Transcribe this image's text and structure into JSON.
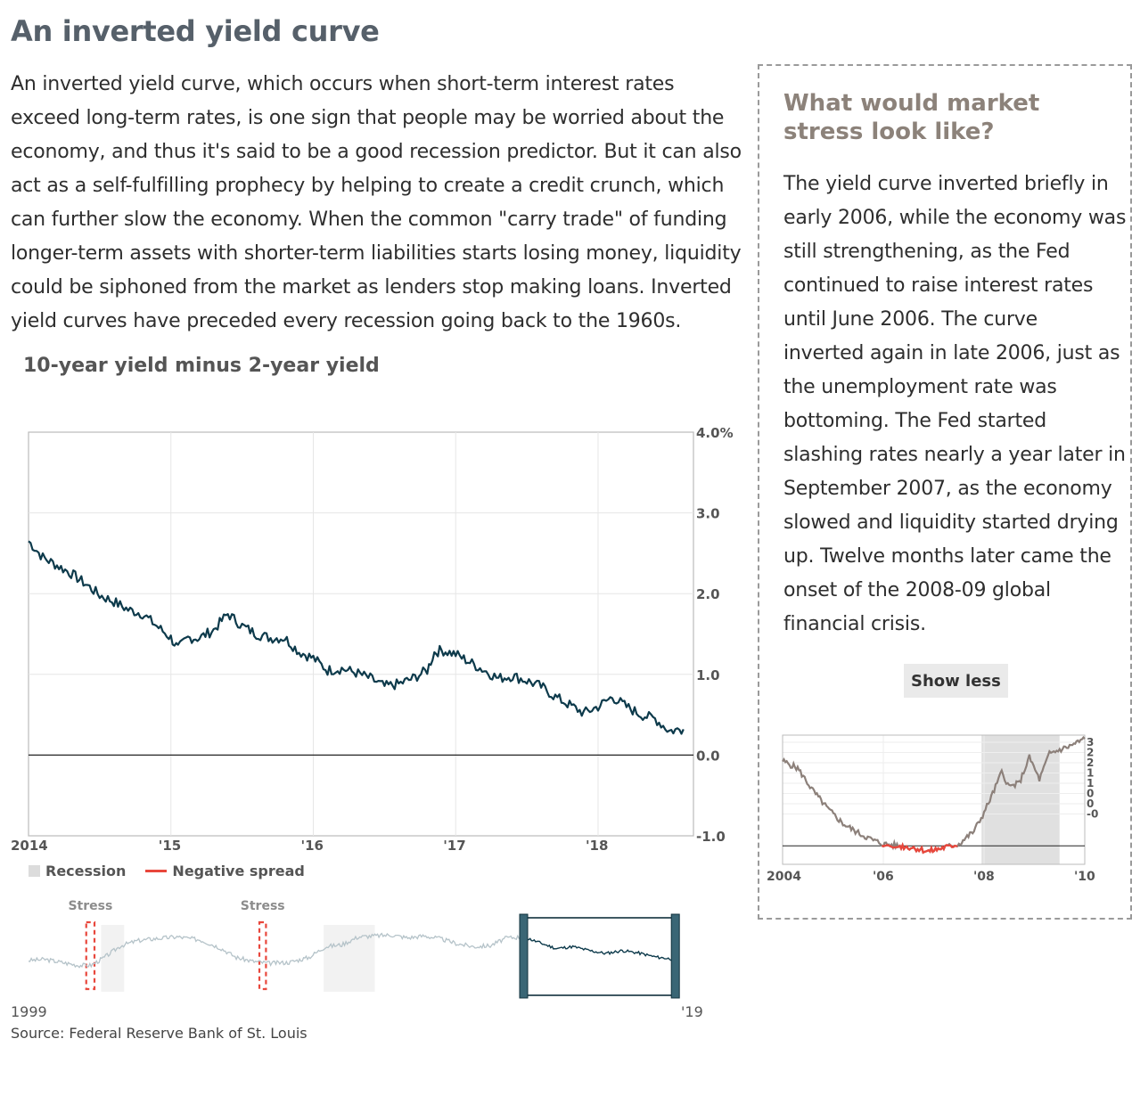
{
  "article": {
    "title": "An inverted yield curve",
    "intro": "An inverted yield curve, which occurs when short-term interest rates exceed long-term rates, is one sign that people may be worried about the economy, and thus it's said to be a good recession predictor. But it can also act as a self-fulfilling prophecy by helping to create a credit crunch, which can further slow the economy. When the common \"carry trade\" of funding longer-term assets with shorter-term liabilities starts losing money, liquidity could be siphoned from the market as lenders stop making loans. Inverted yield curves have preceded every recession going back to the 1960s.",
    "source": "Source: Federal Reserve Bank of St. Louis"
  },
  "legend": {
    "recession": "Recession",
    "negative": "Negative spread"
  },
  "colors": {
    "main_line": "#0d3a4b",
    "context_line": "#b5c3c9",
    "side_line": "#8c807a",
    "negative": "#e8473c",
    "recession": "#dcdcdc",
    "brush": "#3a6675"
  },
  "chart_data": [
    {
      "type": "line",
      "title": "10-year yield minus 2-year yield",
      "x_tick_labels": [
        "2014",
        "'15",
        "'16",
        "'17",
        "'18"
      ],
      "y_tick_labels": [
        "4.0%",
        "3.0",
        "2.0",
        "1.0",
        "0.0",
        "-1.0"
      ],
      "ylim": [
        -1.0,
        4.0
      ],
      "xlim": [
        2014.0,
        2018.67
      ],
      "grid": true,
      "axis_side": "right",
      "series": [
        {
          "x": [
            2014.0,
            2014.1,
            2014.2,
            2014.3,
            2014.4,
            2014.5,
            2014.6,
            2014.7,
            2014.8,
            2014.9,
            2015.0,
            2015.05,
            2015.12,
            2015.2,
            2015.3,
            2015.4,
            2015.5,
            2015.6,
            2015.7,
            2015.8,
            2015.9,
            2016.0,
            2016.1,
            2016.2,
            2016.3,
            2016.4,
            2016.5,
            2016.6,
            2016.7,
            2016.8,
            2016.85,
            2016.9,
            2017.0,
            2017.1,
            2017.2,
            2017.3,
            2017.4,
            2017.5,
            2017.6,
            2017.7,
            2017.8,
            2017.9,
            2018.0,
            2018.1,
            2018.2,
            2018.3,
            2018.4,
            2018.5,
            2018.6
          ],
          "values": [
            2.65,
            2.45,
            2.35,
            2.25,
            2.12,
            1.98,
            1.9,
            1.8,
            1.75,
            1.6,
            1.45,
            1.32,
            1.45,
            1.45,
            1.55,
            1.75,
            1.6,
            1.5,
            1.45,
            1.45,
            1.28,
            1.2,
            1.05,
            1.07,
            1.02,
            0.95,
            0.85,
            0.88,
            0.95,
            1.05,
            1.27,
            1.3,
            1.25,
            1.15,
            1.05,
            0.95,
            0.98,
            0.92,
            0.85,
            0.72,
            0.62,
            0.52,
            0.6,
            0.72,
            0.6,
            0.5,
            0.45,
            0.3,
            0.32
          ]
        }
      ]
    },
    {
      "type": "line",
      "x_tick_labels": [
        "1999",
        "'19"
      ],
      "annotations": [
        "Stress",
        "Stress"
      ],
      "stress_ranges": [
        [
          2000.75,
          2001.0
        ],
        [
          2006.0,
          2006.2
        ]
      ],
      "recession_ranges": [
        [
          2001.2,
          2001.9
        ],
        [
          2007.95,
          2009.5
        ]
      ],
      "selection": [
        2014.0,
        2018.6
      ],
      "xlim": [
        1999.0,
        2019.0
      ],
      "ylim": [
        -1.0,
        3.0
      ],
      "series": [
        {
          "x": [
            1999.0,
            1999.5,
            2000.0,
            2000.5,
            2000.9,
            2001.3,
            2001.8,
            2002.3,
            2002.8,
            2003.5,
            2004.2,
            2004.8,
            2005.3,
            2005.8,
            2006.3,
            2006.9,
            2007.5,
            2008.0,
            2008.5,
            2009.0,
            2009.5,
            2010.0,
            2010.5,
            2011.0,
            2011.5,
            2012.0,
            2012.5,
            2013.0,
            2013.5,
            2014.0
          ],
          "values": [
            0.2,
            0.3,
            0.0,
            -0.3,
            -0.3,
            0.5,
            1.7,
            2.2,
            2.4,
            2.6,
            2.3,
            1.5,
            0.5,
            0.1,
            -0.1,
            0.0,
            0.5,
            1.6,
            1.8,
            2.6,
            2.7,
            2.8,
            2.5,
            2.7,
            2.4,
            1.9,
            1.6,
            1.7,
            2.5,
            2.6
          ]
        },
        {
          "x": [
            2014.0,
            2014.5,
            2015.0,
            2015.5,
            2016.0,
            2016.5,
            2017.0,
            2017.5,
            2018.0,
            2018.6
          ],
          "values": [
            2.6,
            2.0,
            1.4,
            1.6,
            1.2,
            0.9,
            1.2,
            0.95,
            0.55,
            0.3
          ]
        }
      ]
    },
    {
      "type": "line",
      "title": "What would market stress look like?",
      "x_tick_labels": [
        "2004",
        "'06",
        "'08",
        "'10"
      ],
      "y_tick_labels": [
        "3",
        "2",
        "2",
        "1",
        "1",
        "0",
        "0",
        "-0"
      ],
      "recession_ranges": [
        [
          2007.95,
          2009.5
        ]
      ],
      "xlim": [
        2004.0,
        2010.0
      ],
      "ylim": [
        -0.5,
        3.0
      ],
      "series": [
        {
          "x": [
            2004.0,
            2004.3,
            2004.6,
            2004.9,
            2005.2,
            2005.5,
            2005.8,
            2006.0,
            2006.3,
            2006.6,
            2006.9,
            2007.2,
            2007.5,
            2007.8,
            2008.0,
            2008.2,
            2008.35,
            2008.5,
            2008.7,
            2008.9,
            2009.1,
            2009.3,
            2009.5,
            2009.7,
            2010.0
          ],
          "values": [
            2.3,
            2.1,
            1.5,
            1.0,
            0.6,
            0.35,
            0.15,
            0.05,
            0.0,
            -0.05,
            -0.15,
            -0.05,
            0.05,
            0.4,
            0.9,
            1.5,
            2.0,
            1.6,
            1.7,
            2.4,
            1.8,
            2.5,
            2.6,
            2.7,
            2.9
          ]
        }
      ]
    }
  ],
  "sidebar": {
    "title": "What would market stress look like?",
    "lines": [
      "The yield curve inverted briefly in",
      "early 2006, while the economy was",
      "still strengthening, as the Fed",
      "continued to raise interest rates",
      "until June 2006. The curve",
      "inverted again in late 2006, just as",
      "the unemployment rate was",
      "bottoming. The Fed started",
      "slashing rates nearly a year later in",
      "September 2007, as the economy",
      "slowed and liquidity started drying",
      "up. Twelve months later came the",
      "onset of the 2008-09 global",
      "financial crisis."
    ],
    "button": "Show less"
  }
}
